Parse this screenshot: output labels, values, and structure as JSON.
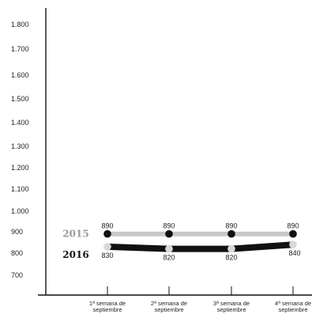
{
  "chart_data": {
    "type": "line",
    "title": "",
    "xlabel": "",
    "ylabel": "",
    "categories": [
      "1ª semana de septiembre",
      "2ª semana de septiembre",
      "3ª semana de septiembre",
      "4ª semana de septiembre"
    ],
    "yticks": [
      "1.800",
      "1.700",
      "1.600",
      "1.500",
      "1.400",
      "1.300",
      "1.200",
      "1.100",
      "1.000",
      "900",
      "800",
      "700"
    ],
    "series": [
      {
        "name": "2015",
        "values": [
          890,
          890,
          890,
          890
        ],
        "labels": [
          "890",
          "890",
          "890",
          "890"
        ],
        "line_color": "#c8c8c8",
        "marker_color": "#111111",
        "label_color": "#999999"
      },
      {
        "name": "2016",
        "values": [
          830,
          820,
          820,
          840
        ],
        "labels": [
          "830",
          "820",
          "820",
          "840"
        ],
        "line_color": "#111111",
        "marker_color": "#d8d8d8",
        "label_color": "#111111"
      }
    ],
    "grid": false,
    "legend": "left, inline with series"
  }
}
